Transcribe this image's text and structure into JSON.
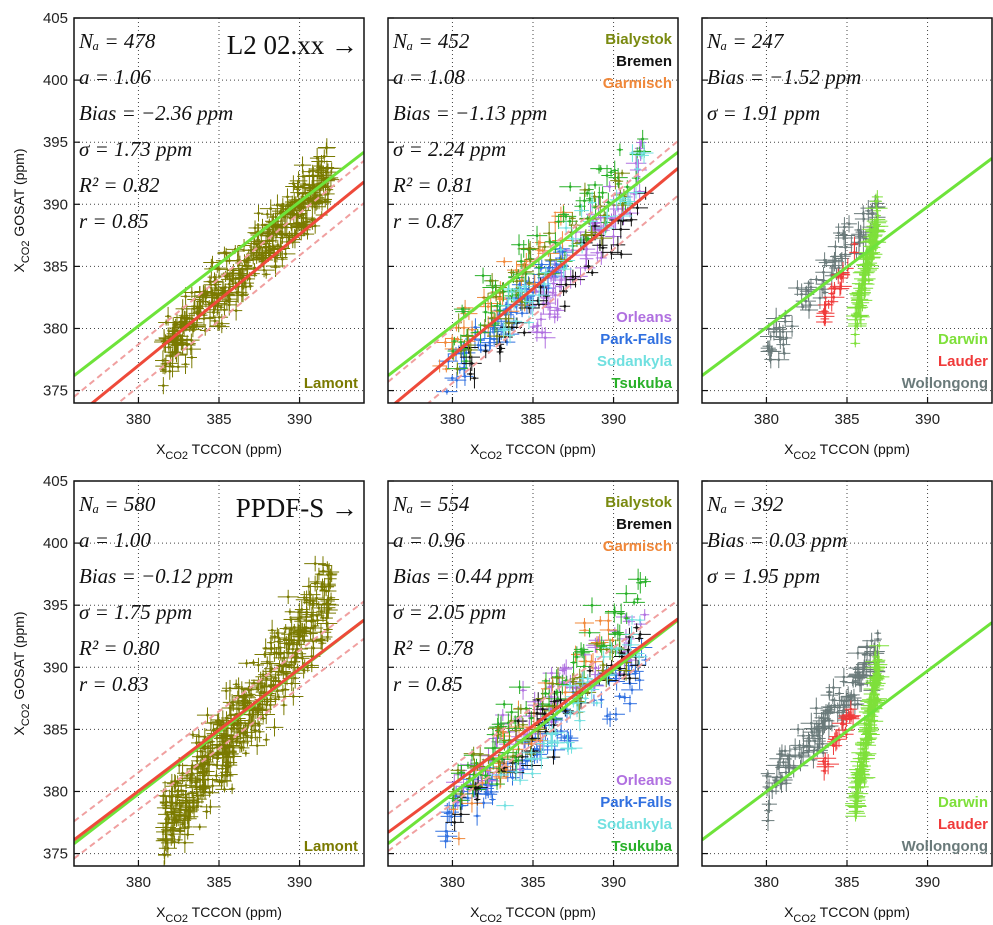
{
  "axes": {
    "xlabel_main": "X",
    "xlabel_sub": "CO2",
    "xlabel_rest": " TCCON (ppm)",
    "ylabel_main": "X",
    "ylabel_sub": "CO2",
    "ylabel_rest": " GOSAT (ppm)",
    "xlim": [
      376,
      394
    ],
    "ylim": [
      374,
      405
    ],
    "xticks": [
      "380",
      "385",
      "390"
    ],
    "yticks": [
      "375",
      "380",
      "385",
      "390",
      "395",
      "400",
      "405"
    ],
    "grid": true
  },
  "colors": {
    "Lamont": "#7a7a00",
    "Bialystok": "#7a8a10",
    "Bremen": "#111111",
    "Garmisch": "#f0883a",
    "Orleans": "#b070e0",
    "Park-Falls": "#3070e0",
    "Sodankyla": "#70e0e0",
    "Tsukuba": "#28b028",
    "Darwin": "#7ee03a",
    "Lauder": "#f03a3a",
    "Wollongong": "#6a7a7a",
    "fit_green": "#6ee33a",
    "fit_red": "#ee4a3a",
    "fit_dashed": "#f0a0a0",
    "ratio_text": "#f07878"
  },
  "chart_data": [
    {
      "type": "scatter",
      "row": 0,
      "col": 0,
      "label": "L2 02.xx →",
      "stats": {
        "nc": "Nₐ = 478",
        "a": "a = 1.06",
        "bias": "Bias = −2.36 ppm",
        "sigma": "σ = 1.73 ppm",
        "r2": "R² = 0.82",
        "r": "r = 0.85"
      },
      "sites": [
        "Lamont"
      ],
      "fit_green": {
        "x": [
          376,
          394
        ],
        "y": [
          376.2,
          394.2
        ]
      },
      "fit_red": {
        "x": [
          376,
          394
        ],
        "y": [
          372.8,
          391.8
        ]
      },
      "fit_dashed": [
        {
          "x": [
            376,
            394
          ],
          "y": [
            374.5,
            393.5
          ]
        },
        {
          "x": [
            376,
            394
          ],
          "y": [
            371.1,
            390.1
          ]
        }
      ],
      "cluster": [
        {
          "site": "Lamont",
          "x": [
            381.5,
            392
          ],
          "y": [
            378,
            392.5
          ],
          "n": 420
        }
      ]
    },
    {
      "type": "scatter",
      "row": 0,
      "col": 1,
      "label": "",
      "stats": {
        "nc": "Nₐ = 452",
        "a": "a = 1.08",
        "bias": "Bias = −1.13 ppm",
        "sigma": "σ = 2.24 ppm",
        "r2": "R² = 0.81",
        "r": "r = 0.87"
      },
      "sites": [
        "Bialystok",
        "Bremen",
        "Garmisch",
        "Orleans",
        "Park-Falls",
        "Sodankyla",
        "Tsukuba"
      ],
      "fit_green": {
        "x": [
          376,
          394
        ],
        "y": [
          376.2,
          394.2
        ]
      },
      "fit_red": {
        "x": [
          376,
          394
        ],
        "y": [
          373.5,
          392.9
        ]
      },
      "fit_dashed": [
        {
          "x": [
            376,
            394
          ],
          "y": [
            375.7,
            395.1
          ]
        },
        {
          "x": [
            376,
            394
          ],
          "y": [
            371.3,
            390.7
          ]
        }
      ],
      "cluster": [
        {
          "site": "Park-Falls",
          "x": [
            379.5,
            387
          ],
          "y": [
            375.5,
            386
          ],
          "n": 80
        },
        {
          "site": "Orleans",
          "x": [
            385,
            392
          ],
          "y": [
            380,
            394
          ],
          "n": 70
        },
        {
          "site": "Garmisch",
          "x": [
            379,
            387
          ],
          "y": [
            377,
            388
          ],
          "n": 40
        },
        {
          "site": "Tsukuba",
          "x": [
            380,
            392
          ],
          "y": [
            379,
            394
          ],
          "n": 80
        },
        {
          "site": "Bremen",
          "x": [
            381,
            392
          ],
          "y": [
            377,
            390
          ],
          "n": 40
        },
        {
          "site": "Bialystok",
          "x": [
            380,
            391
          ],
          "y": [
            378,
            392
          ],
          "n": 50
        },
        {
          "site": "Sodankyla",
          "x": [
            383,
            392
          ],
          "y": [
            380,
            393
          ],
          "n": 40
        }
      ]
    },
    {
      "type": "scatter",
      "row": 0,
      "col": 2,
      "label": "",
      "stats": {
        "nc": "Nₐ = 247",
        "bias": "Bias = −1.52 ppm",
        "sigma": "σ = 1.91 ppm"
      },
      "sites": [
        "Darwin",
        "Lauder",
        "Wollongong"
      ],
      "fit_green": {
        "x": [
          376,
          394
        ],
        "y": [
          376.2,
          393.7
        ]
      },
      "cluster": [
        {
          "site": "Wollongong",
          "x": [
            380,
            387
          ],
          "y": [
            378.5,
            390
          ],
          "n": 90
        },
        {
          "site": "Lauder",
          "x": [
            383.5,
            385.5
          ],
          "y": [
            381,
            386.5
          ],
          "n": 25
        },
        {
          "site": "Darwin",
          "x": [
            385.5,
            387
          ],
          "y": [
            380.5,
            389.5
          ],
          "n": 110
        }
      ]
    },
    {
      "type": "scatter",
      "row": 1,
      "col": 0,
      "label": "PPDF-S →",
      "stats": {
        "nc": "Nₐ = 580",
        "a": "a = 1.00",
        "bias": "Bias = −0.12 ppm",
        "sigma": "σ = 1.75 ppm",
        "r2": "R² = 0.80",
        "r": "r = 0.83"
      },
      "sites": [
        "Lamont"
      ],
      "fit_green": {
        "x": [
          376,
          394
        ],
        "y": [
          375.8,
          393.8
        ]
      },
      "fit_red": {
        "x": [
          376,
          394
        ],
        "y": [
          376.1,
          393.8
        ]
      },
      "fit_dashed": [
        {
          "x": [
            376,
            394
          ],
          "y": [
            377.6,
            395.3
          ]
        },
        {
          "x": [
            376,
            394
          ],
          "y": [
            374.6,
            392.3
          ]
        }
      ],
      "cluster": [
        {
          "site": "Lamont",
          "x": [
            381.5,
            392
          ],
          "y": [
            377,
            396
          ],
          "n": 500
        }
      ]
    },
    {
      "type": "scatter",
      "row": 1,
      "col": 1,
      "label": "",
      "stats": {
        "nc": "Nₐ = 554",
        "a": "a = 0.96",
        "bias": "Bias = 0.44 ppm",
        "sigma": "σ = 2.05 ppm",
        "r2": "R² = 0.78",
        "r": "r = 0.85"
      },
      "sites": [
        "Bialystok",
        "Bremen",
        "Garmisch",
        "Orleans",
        "Park-Falls",
        "Sodankyla",
        "Tsukuba"
      ],
      "fit_green": {
        "x": [
          376,
          394
        ],
        "y": [
          375.8,
          393.8
        ]
      },
      "fit_red": {
        "x": [
          376,
          394
        ],
        "y": [
          376.7,
          393.9
        ]
      },
      "fit_dashed": [
        {
          "x": [
            376,
            394
          ],
          "y": [
            378.2,
            395.4
          ]
        },
        {
          "x": [
            376,
            394
          ],
          "y": [
            375.2,
            392.4
          ]
        }
      ],
      "cluster": [
        {
          "site": "Park-Falls",
          "x": [
            379.5,
            392
          ],
          "y": [
            378,
            390
          ],
          "n": 90
        },
        {
          "site": "Orleans",
          "x": [
            380,
            392
          ],
          "y": [
            380,
            394
          ],
          "n": 80
        },
        {
          "site": "Garmisch",
          "x": [
            380,
            390
          ],
          "y": [
            378,
            394
          ],
          "n": 40
        },
        {
          "site": "Tsukuba",
          "x": [
            380,
            392
          ],
          "y": [
            380,
            396
          ],
          "n": 80
        },
        {
          "site": "Bremen",
          "x": [
            380,
            392
          ],
          "y": [
            379,
            392
          ],
          "n": 50
        },
        {
          "site": "Bialystok",
          "x": [
            380,
            391
          ],
          "y": [
            380,
            392
          ],
          "n": 50
        },
        {
          "site": "Sodankyla",
          "x": [
            383,
            392
          ],
          "y": [
            380,
            393
          ],
          "n": 50
        }
      ]
    },
    {
      "type": "scatter",
      "row": 1,
      "col": 2,
      "label": "",
      "stats": {
        "nc": "Nₐ = 392",
        "bias": "Bias = 0.03 ppm",
        "sigma": "σ = 1.95 ppm"
      },
      "sites": [
        "Darwin",
        "Lauder",
        "Wollongong"
      ],
      "fit_green": {
        "x": [
          376,
          394
        ],
        "y": [
          376.1,
          393.6
        ]
      },
      "cluster": [
        {
          "site": "Wollongong",
          "x": [
            380,
            387
          ],
          "y": [
            380,
            391
          ],
          "n": 150
        },
        {
          "site": "Lauder",
          "x": [
            383.5,
            385.5
          ],
          "y": [
            382,
            387
          ],
          "n": 25
        },
        {
          "site": "Darwin",
          "x": [
            385.5,
            387
          ],
          "y": [
            379,
            390
          ],
          "n": 160
        }
      ]
    }
  ]
}
